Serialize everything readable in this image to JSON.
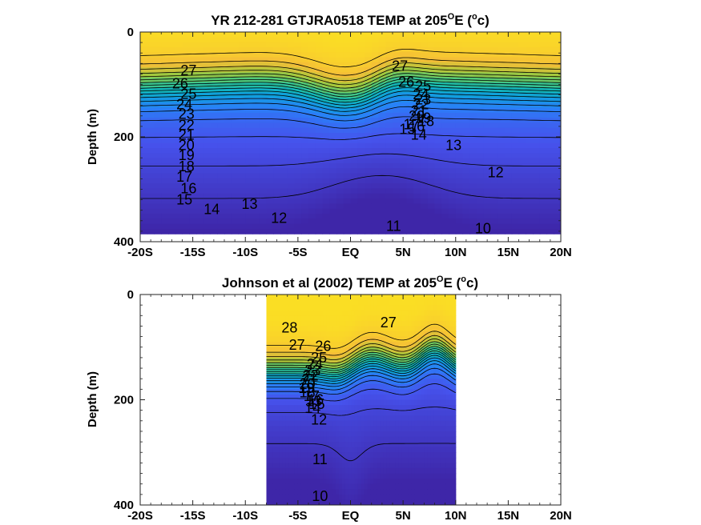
{
  "chart_data": [
    {
      "type": "heatmap",
      "title": "YR 212-281 GTJRA0518 TEMP at 205",
      "title_super": "O",
      "title_tail": "E (",
      "title_unit_super": "o",
      "title_unit_tail": "c)",
      "ylabel": "Depth (m)",
      "xlabel": "",
      "x_ticks": [
        "-20S",
        "-15S",
        "-10S",
        "-5S",
        "EQ",
        "5N",
        "10N",
        "15N",
        "20N"
      ],
      "y_ticks": [
        "0",
        "200",
        "400"
      ],
      "xlim": [
        -20,
        20
      ],
      "ylim": [
        0,
        400
      ],
      "data_extent": {
        "x": [
          -20,
          20
        ],
        "y": [
          0,
          385
        ]
      },
      "color_range": [
        9,
        30
      ],
      "colormap": "parula",
      "contour_labels": [
        {
          "text": "27",
          "x": -15.4,
          "depth": 75
        },
        {
          "text": "26",
          "x": -16.2,
          "depth": 100
        },
        {
          "text": "25",
          "x": -15.4,
          "depth": 120
        },
        {
          "text": "24",
          "x": -15.8,
          "depth": 140
        },
        {
          "text": "23",
          "x": -15.6,
          "depth": 158
        },
        {
          "text": "22",
          "x": -15.6,
          "depth": 180
        },
        {
          "text": "21",
          "x": -15.6,
          "depth": 198
        },
        {
          "text": "20",
          "x": -15.6,
          "depth": 218
        },
        {
          "text": "19",
          "x": -15.6,
          "depth": 237
        },
        {
          "text": "18",
          "x": -15.6,
          "depth": 258
        },
        {
          "text": "17",
          "x": -15.8,
          "depth": 278
        },
        {
          "text": "16",
          "x": -15.4,
          "depth": 300
        },
        {
          "text": "15",
          "x": -15.8,
          "depth": 322
        },
        {
          "text": "14",
          "x": -13.2,
          "depth": 340
        },
        {
          "text": "13",
          "x": -9.6,
          "depth": 330
        },
        {
          "text": "12",
          "x": -6.8,
          "depth": 357
        },
        {
          "text": "11",
          "x": 4.1,
          "depth": 372
        },
        {
          "text": "10",
          "x": 12.6,
          "depth": 377
        },
        {
          "text": "27",
          "x": 4.7,
          "depth": 67
        },
        {
          "text": "26",
          "x": 5.3,
          "depth": 97
        },
        {
          "text": "25",
          "x": 6.9,
          "depth": 105
        },
        {
          "text": "24",
          "x": 6.7,
          "depth": 121
        },
        {
          "text": "23",
          "x": 6.9,
          "depth": 131
        },
        {
          "text": "22",
          "x": 6.7,
          "depth": 140
        },
        {
          "text": "21",
          "x": 6.5,
          "depth": 152
        },
        {
          "text": "20",
          "x": 6.3,
          "depth": 162
        },
        {
          "text": "19",
          "x": 6.9,
          "depth": 166
        },
        {
          "text": "18",
          "x": 7.2,
          "depth": 172
        },
        {
          "text": "17",
          "x": 5.8,
          "depth": 178
        },
        {
          "text": "16",
          "x": 6.3,
          "depth": 182
        },
        {
          "text": "15",
          "x": 5.4,
          "depth": 187
        },
        {
          "text": "14",
          "x": 6.5,
          "depth": 198
        },
        {
          "text": "13",
          "x": 9.8,
          "depth": 218
        },
        {
          "text": "12",
          "x": 13.8,
          "depth": 270
        }
      ]
    },
    {
      "type": "heatmap",
      "title": "Johnson et al (2002) TEMP at 205",
      "title_super": "O",
      "title_tail": "E (",
      "title_unit_super": "o",
      "title_unit_tail": "c)",
      "ylabel": "Depth (m)",
      "xlabel": "",
      "x_ticks": [
        "-20S",
        "-15S",
        "-10S",
        "-5S",
        "EQ",
        "5N",
        "10N",
        "15N",
        "20N"
      ],
      "y_ticks": [
        "0",
        "200",
        "400"
      ],
      "xlim": [
        -20,
        20
      ],
      "ylim": [
        0,
        400
      ],
      "data_extent": {
        "x": [
          -8,
          10
        ],
        "y": [
          0,
          400
        ]
      },
      "color_range": [
        9,
        30
      ],
      "colormap": "parula",
      "contour_labels": [
        {
          "text": "28",
          "x": -5.8,
          "depth": 65
        },
        {
          "text": "27",
          "x": 3.6,
          "depth": 55
        },
        {
          "text": "27",
          "x": -5.1,
          "depth": 98
        },
        {
          "text": "26",
          "x": -2.6,
          "depth": 100
        },
        {
          "text": "25",
          "x": -3.0,
          "depth": 122
        },
        {
          "text": "24",
          "x": -3.4,
          "depth": 134
        },
        {
          "text": "23",
          "x": -3.6,
          "depth": 146
        },
        {
          "text": "22",
          "x": -3.8,
          "depth": 156
        },
        {
          "text": "21",
          "x": -3.9,
          "depth": 164
        },
        {
          "text": "20",
          "x": -4.1,
          "depth": 172
        },
        {
          "text": "19",
          "x": -4.2,
          "depth": 180
        },
        {
          "text": "18",
          "x": -4.1,
          "depth": 188
        },
        {
          "text": "17",
          "x": -3.7,
          "depth": 195
        },
        {
          "text": "16",
          "x": -3.3,
          "depth": 202
        },
        {
          "text": "15",
          "x": -3.2,
          "depth": 210
        },
        {
          "text": "14",
          "x": -3.6,
          "depth": 218
        },
        {
          "text": "13",
          "x": -3.5,
          "depth": 205
        },
        {
          "text": "12",
          "x": -3.0,
          "depth": 240
        },
        {
          "text": "11",
          "x": -2.9,
          "depth": 315
        },
        {
          "text": "10",
          "x": -2.9,
          "depth": 385
        }
      ]
    }
  ]
}
